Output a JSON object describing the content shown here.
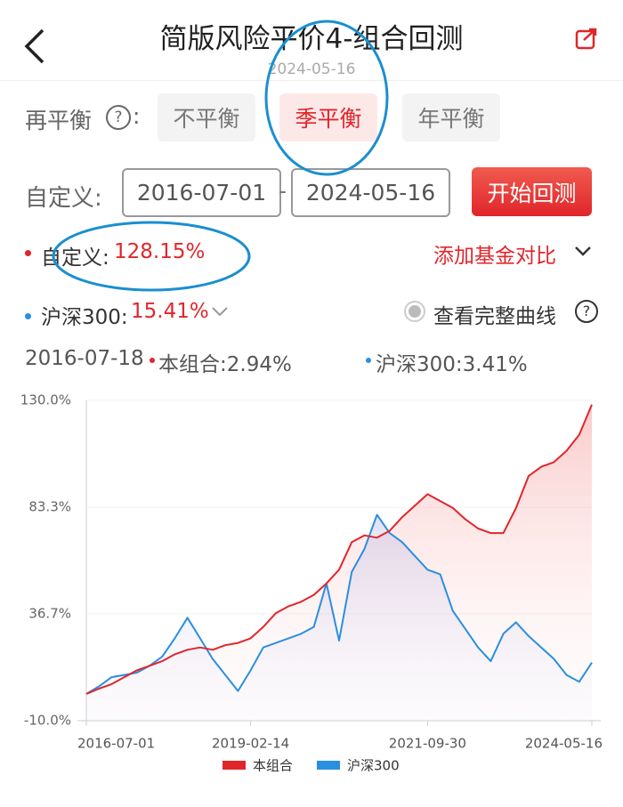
{
  "header": {
    "title": "简版风险平价4-组合回测",
    "date": "2024-05-16"
  },
  "rebalance": {
    "label": "再平衡",
    "help": "?",
    "colon": ":",
    "options": [
      "不平衡",
      "季平衡",
      "年平衡"
    ]
  },
  "custom_range": {
    "label": "自定义:",
    "start": "2016-07-01",
    "separator": "-",
    "end": "2024-05-16",
    "button": "开始回测"
  },
  "summary": {
    "portfolio_label": "自定义:",
    "portfolio_return": "128.15%",
    "add_compare": "添加基金对比",
    "index_label": "沪深300:",
    "index_return": "15.41%",
    "full_curve": "查看完整曲线",
    "full_curve_help": "?",
    "point_date": "2016-07-18",
    "point_portfolio": "本组合:2.94%",
    "point_index": "沪深300:3.41%"
  },
  "chart_data": {
    "type": "line",
    "categories": [
      "2016-07-01",
      null,
      null,
      null,
      null,
      null,
      null,
      null,
      null,
      null,
      null,
      null,
      null,
      "2019-02-14",
      null,
      null,
      null,
      null,
      null,
      null,
      null,
      null,
      null,
      null,
      null,
      null,
      null,
      "2021-09-30",
      null,
      null,
      null,
      null,
      null,
      null,
      null,
      null,
      null,
      null,
      null,
      null,
      "2024-05-16"
    ],
    "series": [
      {
        "name": "本组合",
        "color": "#e0262b",
        "values": [
          1.7,
          4,
          6,
          9,
          12,
          14,
          16,
          19,
          21,
          22,
          21,
          23,
          24,
          26,
          31,
          37,
          40,
          42,
          45,
          50,
          56,
          68,
          71,
          70,
          73,
          79,
          84,
          89,
          86,
          83,
          78,
          74,
          72,
          72,
          83,
          97,
          101,
          103,
          108,
          115,
          128.15
        ]
      },
      {
        "name": "沪深300",
        "color": "#2a8fe0",
        "values": [
          1.7,
          5,
          9,
          10,
          11,
          14,
          18,
          26,
          35,
          26,
          17,
          10,
          3,
          12,
          22,
          24,
          26,
          28,
          31,
          50,
          25,
          55,
          65,
          80,
          72,
          68,
          62,
          56,
          54,
          38,
          30,
          22,
          16,
          28,
          33,
          27,
          22,
          17,
          10,
          7,
          15.41
        ]
      }
    ],
    "ylim": [
      -10,
      130
    ],
    "yticks": [
      {
        "value": -10,
        "label": "-10.0%"
      },
      {
        "value": 36.7,
        "label": "36.7%"
      },
      {
        "value": 83.3,
        "label": "83.3%"
      },
      {
        "value": 130,
        "label": "130.0%"
      }
    ],
    "grid": true
  }
}
